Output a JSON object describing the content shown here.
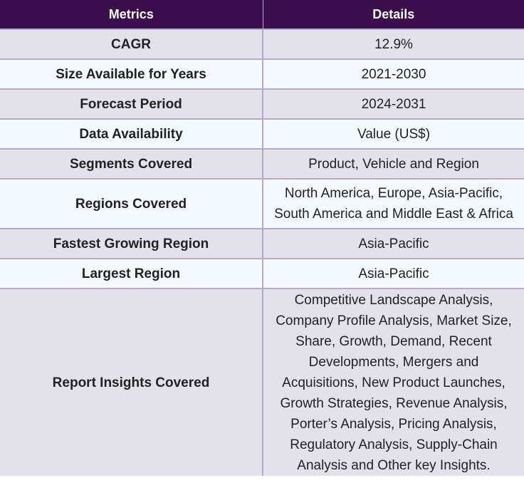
{
  "table": {
    "headers": {
      "metrics": "Metrics",
      "details": "Details"
    },
    "rows": [
      {
        "metric": "CAGR",
        "detail": "12.9%"
      },
      {
        "metric": "Size Available for Years",
        "detail": "2021-2030"
      },
      {
        "metric": "Forecast Period",
        "detail": "2024-2031"
      },
      {
        "metric": "Data Availability",
        "detail": "Value (US$)"
      },
      {
        "metric": "Segments Covered",
        "detail": "Product, Vehicle and Region"
      },
      {
        "metric": "Regions Covered",
        "detail": "North America, Europe, Asia-Pacific, South America and Middle East & Africa"
      },
      {
        "metric": "Fastest Growing Region",
        "detail": "Asia-Pacific"
      },
      {
        "metric": "Largest Region",
        "detail": "Asia-Pacific"
      },
      {
        "metric": "Report Insights Covered",
        "detail": "Competitive Landscape Analysis, Company Profile Analysis, Market Size, Share, Growth, Demand, Recent Developments, Mergers and Acquisitions, New Product Launches, Growth Strategies, Revenue Analysis, Porter’s Analysis, Pricing Analysis, Regulatory Analysis, Supply-Chain Analysis and Other key Insights."
      }
    ]
  }
}
